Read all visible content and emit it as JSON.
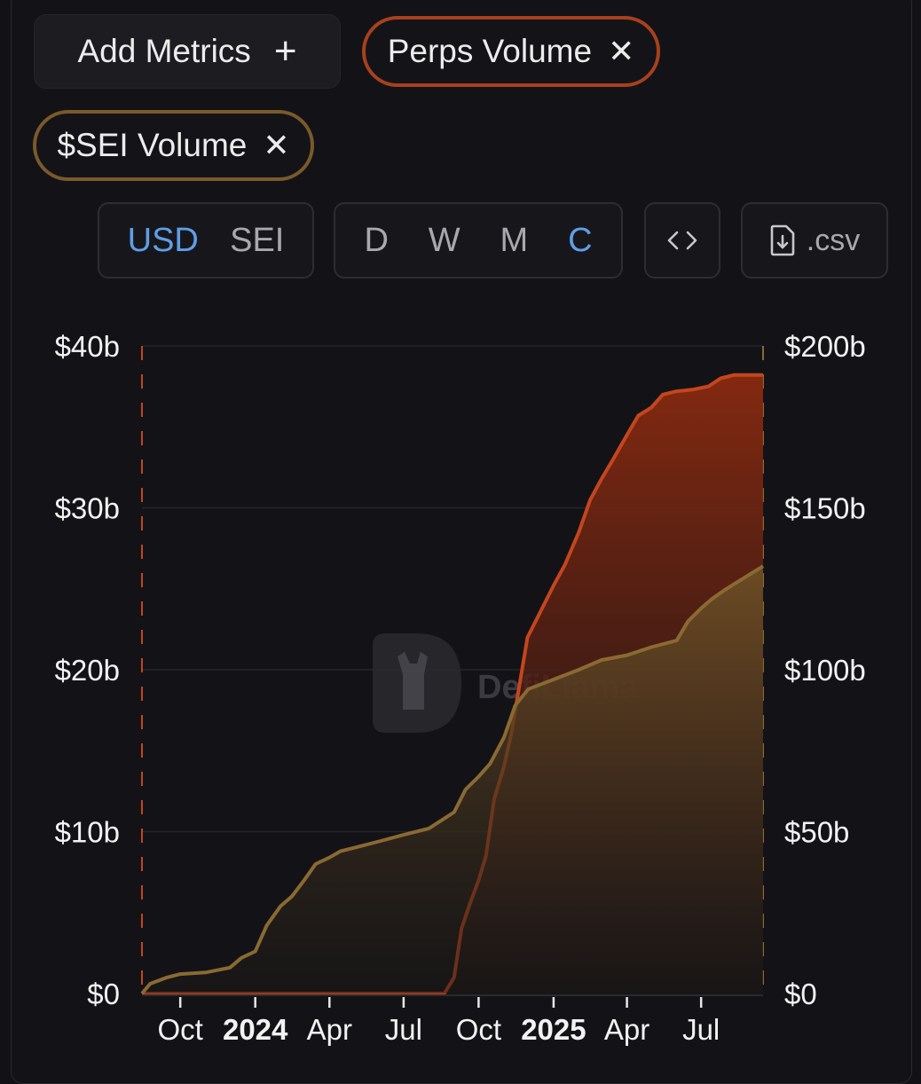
{
  "toolbar": {
    "add_metrics_label": "Add Metrics",
    "add_icon": "plus-icon",
    "close_icon": "close-icon"
  },
  "metric_chips": [
    {
      "label": "Perps Volume",
      "color": "#a8401e"
    },
    {
      "label": "$SEI Volume",
      "color": "#7a5a2a"
    }
  ],
  "currency_toggle": {
    "options": [
      "USD",
      "SEI"
    ],
    "selected": "USD"
  },
  "period_toggle": {
    "options": [
      "D",
      "W",
      "M",
      "C"
    ],
    "selected": "C"
  },
  "embed_button": {
    "icon": "code-icon",
    "label": "<>"
  },
  "csv_button": {
    "icon": "file-download-icon",
    "label": ".csv"
  },
  "watermark": {
    "text": "DefiLlama",
    "icon": "llama-logo-icon"
  },
  "colors": {
    "accent": "#5f9ee8",
    "perps": "#c4461e",
    "sei": "#8a6a32",
    "background": "#131317"
  },
  "chart_data": {
    "type": "area",
    "left_axis": {
      "ticks": [
        "$0",
        "$10b",
        "$20b",
        "$30b",
        "$40b"
      ],
      "ylim": [
        0,
        40
      ]
    },
    "right_axis": {
      "ticks": [
        "$0",
        "$50b",
        "$100b",
        "$150b",
        "$200b"
      ],
      "ylim": [
        0,
        200
      ]
    },
    "x_ticks": [
      {
        "label": "Oct",
        "date": "2023-10-01",
        "bold": false
      },
      {
        "label": "2024",
        "date": "2024-01-01",
        "bold": true
      },
      {
        "label": "Apr",
        "date": "2024-04-01",
        "bold": false
      },
      {
        "label": "Jul",
        "date": "2024-07-01",
        "bold": false
      },
      {
        "label": "Oct",
        "date": "2024-10-01",
        "bold": false
      },
      {
        "label": "2025",
        "date": "2025-01-01",
        "bold": true
      },
      {
        "label": "Apr",
        "date": "2025-04-01",
        "bold": false
      },
      {
        "label": "Jul",
        "date": "2025-07-01",
        "bold": false
      }
    ],
    "xlim": [
      "2023-08-15",
      "2025-09-15"
    ],
    "series": [
      {
        "name": "Perps Volume",
        "axis": "left",
        "unit": "$b",
        "points": [
          [
            "2023-08-15",
            0
          ],
          [
            "2024-08-20",
            0
          ],
          [
            "2024-09-01",
            1
          ],
          [
            "2024-09-10",
            4
          ],
          [
            "2024-09-20",
            5.5
          ],
          [
            "2024-10-01",
            7
          ],
          [
            "2024-10-10",
            8.5
          ],
          [
            "2024-10-20",
            12
          ],
          [
            "2024-11-01",
            14
          ],
          [
            "2024-11-10",
            16
          ],
          [
            "2024-11-20",
            19
          ],
          [
            "2024-11-30",
            22
          ],
          [
            "2024-12-10",
            23
          ],
          [
            "2024-12-20",
            24
          ],
          [
            "2025-01-01",
            25.2
          ],
          [
            "2025-01-15",
            26.5
          ],
          [
            "2025-02-01",
            28.5
          ],
          [
            "2025-02-15",
            30.5
          ],
          [
            "2025-03-01",
            31.8
          ],
          [
            "2025-03-15",
            33
          ],
          [
            "2025-04-01",
            34.5
          ],
          [
            "2025-04-15",
            35.7
          ],
          [
            "2025-05-01",
            36.2
          ],
          [
            "2025-05-15",
            37
          ],
          [
            "2025-06-01",
            37.2
          ],
          [
            "2025-06-20",
            37.3
          ],
          [
            "2025-07-10",
            37.5
          ],
          [
            "2025-07-25",
            38
          ],
          [
            "2025-08-10",
            38.2
          ],
          [
            "2025-09-15",
            38.2
          ]
        ]
      },
      {
        "name": "$SEI Volume",
        "axis": "right",
        "unit": "$b",
        "points": [
          [
            "2023-08-15",
            0
          ],
          [
            "2023-08-25",
            3
          ],
          [
            "2023-09-15",
            5
          ],
          [
            "2023-10-01",
            6
          ],
          [
            "2023-11-01",
            6.5
          ],
          [
            "2023-12-01",
            8
          ],
          [
            "2023-12-15",
            11
          ],
          [
            "2024-01-01",
            13
          ],
          [
            "2024-01-15",
            21
          ],
          [
            "2024-02-01",
            27
          ],
          [
            "2024-02-15",
            30
          ],
          [
            "2024-03-01",
            35
          ],
          [
            "2024-03-15",
            40
          ],
          [
            "2024-04-01",
            42
          ],
          [
            "2024-04-15",
            44
          ],
          [
            "2024-05-01",
            45
          ],
          [
            "2024-06-01",
            47
          ],
          [
            "2024-07-01",
            49
          ],
          [
            "2024-08-01",
            51
          ],
          [
            "2024-09-01",
            56
          ],
          [
            "2024-09-15",
            63
          ],
          [
            "2024-10-01",
            67
          ],
          [
            "2024-10-15",
            71
          ],
          [
            "2024-11-01",
            79
          ],
          [
            "2024-11-15",
            89
          ],
          [
            "2024-12-01",
            94
          ],
          [
            "2025-01-01",
            97
          ],
          [
            "2025-02-01",
            100
          ],
          [
            "2025-03-01",
            103
          ],
          [
            "2025-04-01",
            104.5
          ],
          [
            "2025-05-01",
            107
          ],
          [
            "2025-06-01",
            109
          ],
          [
            "2025-06-15",
            115
          ],
          [
            "2025-07-01",
            119
          ],
          [
            "2025-07-15",
            122
          ],
          [
            "2025-08-01",
            125
          ],
          [
            "2025-09-15",
            132
          ]
        ]
      }
    ]
  }
}
